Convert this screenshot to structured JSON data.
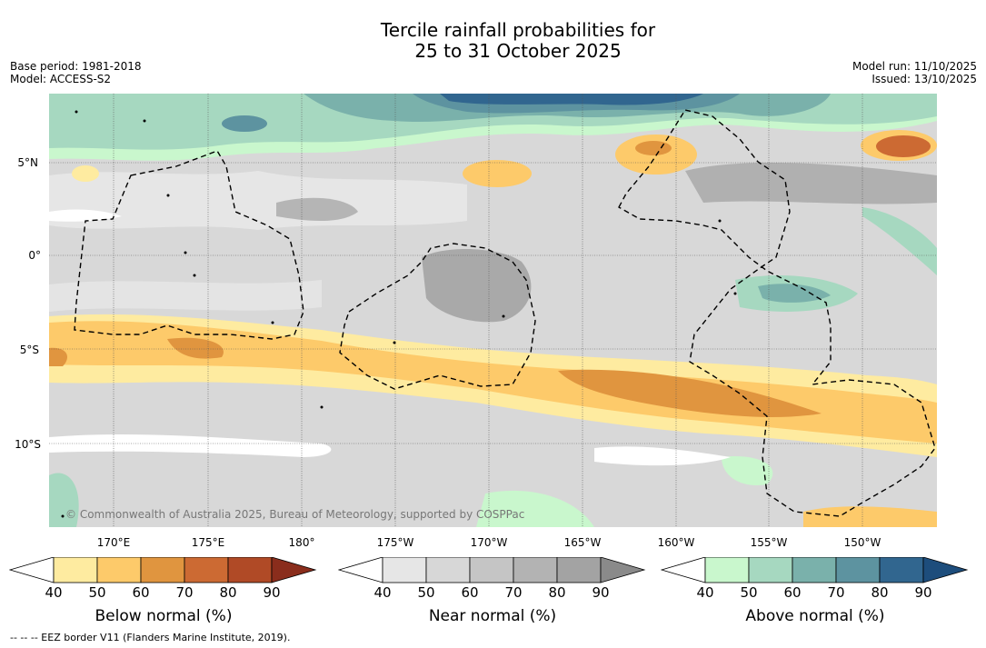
{
  "header": {
    "title_line1": "Tercile rainfall probabilities for",
    "title_line2": "25 to 31 October 2025",
    "base_period": "Base period: 1981-2018",
    "model": "Model: ACCESS-S2",
    "model_run": "Model run: 11/10/2025",
    "issued": "Issued: 13/10/2025"
  },
  "axes": {
    "lat_labels": [
      "5°N",
      "0°",
      "5°S",
      "10°S"
    ],
    "lon_labels": [
      "170°E",
      "175°E",
      "180°",
      "175°W",
      "170°W",
      "165°W",
      "160°W",
      "155°W",
      "150°W"
    ]
  },
  "copyright": "© Commonwealth of Australia 2025, Bureau of Meteorology, supported by COSPPac",
  "colorbars": [
    {
      "label": "Below normal (%)",
      "ticks": [
        "40",
        "50",
        "60",
        "70",
        "80",
        "90"
      ],
      "colors": [
        "#ffffff",
        "#feeba0",
        "#fdca6a",
        "#e0953f",
        "#cc6a33",
        "#b04a26",
        "#8a2d1c"
      ]
    },
    {
      "label": "Near normal (%)",
      "ticks": [
        "40",
        "50",
        "60",
        "70",
        "80",
        "90"
      ],
      "colors": [
        "#ffffff",
        "#e6e6e6",
        "#d7d7d7",
        "#c5c5c5",
        "#b3b3b3",
        "#a3a3a3",
        "#8a8a8a"
      ]
    },
    {
      "label": "Above normal (%)",
      "ticks": [
        "40",
        "50",
        "60",
        "70",
        "80",
        "90"
      ],
      "colors": [
        "#ffffff",
        "#c9f7cd",
        "#a6d8c0",
        "#7ab1ab",
        "#5d93a0",
        "#31668f",
        "#1d4d7c"
      ]
    }
  ],
  "footer": "--  --  -- EEZ border V11 (Flanders Marine Institute, 2019)."
}
